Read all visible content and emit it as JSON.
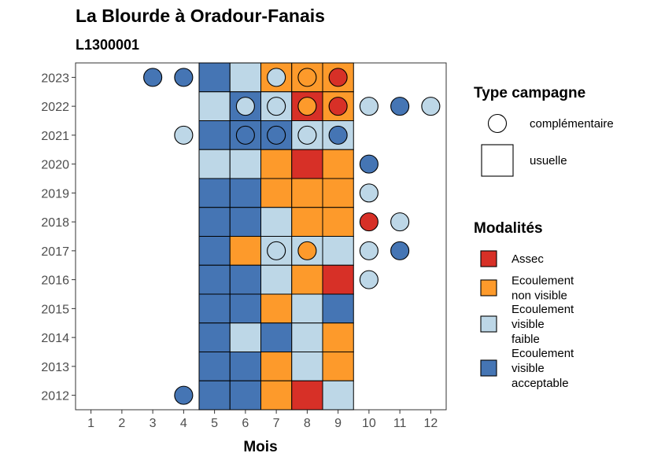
{
  "chart_data": {
    "type": "heatmap",
    "title": "La Blourde à Oradour-Fanais",
    "subtitle": "L1300001",
    "xlabel": "Mois",
    "ylabel": "",
    "x_ticks": [
      "1",
      "2",
      "3",
      "4",
      "5",
      "6",
      "7",
      "8",
      "9",
      "10",
      "11",
      "12"
    ],
    "y_ticks": [
      "2012",
      "2013",
      "2014",
      "2015",
      "2016",
      "2017",
      "2018",
      "2019",
      "2020",
      "2021",
      "2022",
      "2023"
    ],
    "xlim": [
      0.5,
      12.5
    ],
    "ylim": [
      2011.5,
      2023.5
    ],
    "grid": false,
    "colors": {
      "Assec": "#d73027",
      "Ecoulement non visible": "#fd9a2b",
      "Ecoulement visible faible": "#bdd7e7",
      "Ecoulement visible acceptable": "#4575b4"
    },
    "legend_campagne": {
      "title": "Type campagne",
      "entries": [
        {
          "key": "complementaire",
          "label": "complémentaire",
          "shape": "circle"
        },
        {
          "key": "usuelle",
          "label": "usuelle",
          "shape": "square"
        }
      ]
    },
    "legend_modalites": {
      "title": "Modalités",
      "entries": [
        {
          "key": "Assec",
          "lines": [
            "Assec"
          ]
        },
        {
          "key": "Ecoulement non visible",
          "lines": [
            "Ecoulement",
            "non visible"
          ]
        },
        {
          "key": "Ecoulement visible faible",
          "lines": [
            "Ecoulement",
            "visible",
            "faible"
          ]
        },
        {
          "key": "Ecoulement visible acceptable",
          "lines": [
            "Ecoulement",
            "visible",
            "acceptable"
          ]
        }
      ]
    },
    "usuelle": [
      {
        "year": 2023,
        "months": {
          "5": "Ecoulement visible acceptable",
          "6": "Ecoulement visible faible",
          "7": "Ecoulement non visible",
          "8": "Ecoulement non visible",
          "9": "Ecoulement non visible"
        }
      },
      {
        "year": 2022,
        "months": {
          "5": "Ecoulement visible faible",
          "6": "Ecoulement visible acceptable",
          "7": "Ecoulement visible faible",
          "8": "Assec",
          "9": "Ecoulement non visible"
        }
      },
      {
        "year": 2021,
        "months": {
          "5": "Ecoulement visible acceptable",
          "6": "Ecoulement visible acceptable",
          "7": "Ecoulement visible acceptable",
          "8": "Ecoulement visible faible",
          "9": "Ecoulement visible faible"
        }
      },
      {
        "year": 2020,
        "months": {
          "5": "Ecoulement visible faible",
          "6": "Ecoulement visible faible",
          "7": "Ecoulement non visible",
          "8": "Assec",
          "9": "Ecoulement non visible"
        }
      },
      {
        "year": 2019,
        "months": {
          "5": "Ecoulement visible acceptable",
          "6": "Ecoulement visible acceptable",
          "7": "Ecoulement non visible",
          "8": "Ecoulement non visible",
          "9": "Ecoulement non visible"
        }
      },
      {
        "year": 2018,
        "months": {
          "5": "Ecoulement visible acceptable",
          "6": "Ecoulement visible acceptable",
          "7": "Ecoulement visible faible",
          "8": "Ecoulement non visible",
          "9": "Ecoulement non visible"
        }
      },
      {
        "year": 2017,
        "months": {
          "5": "Ecoulement visible acceptable",
          "6": "Ecoulement non visible",
          "7": "Ecoulement visible faible",
          "8": "Ecoulement visible faible",
          "9": "Ecoulement visible faible"
        }
      },
      {
        "year": 2016,
        "months": {
          "5": "Ecoulement visible acceptable",
          "6": "Ecoulement visible acceptable",
          "7": "Ecoulement visible faible",
          "8": "Ecoulement non visible",
          "9": "Assec"
        }
      },
      {
        "year": 2015,
        "months": {
          "5": "Ecoulement visible acceptable",
          "6": "Ecoulement visible acceptable",
          "7": "Ecoulement non visible",
          "8": "Ecoulement visible faible",
          "9": "Ecoulement visible acceptable"
        }
      },
      {
        "year": 2014,
        "months": {
          "5": "Ecoulement visible acceptable",
          "6": "Ecoulement visible faible",
          "7": "Ecoulement visible acceptable",
          "8": "Ecoulement visible faible",
          "9": "Ecoulement non visible"
        }
      },
      {
        "year": 2013,
        "months": {
          "5": "Ecoulement visible acceptable",
          "6": "Ecoulement visible acceptable",
          "7": "Ecoulement non visible",
          "8": "Ecoulement visible faible",
          "9": "Ecoulement non visible"
        }
      },
      {
        "year": 2012,
        "months": {
          "5": "Ecoulement visible acceptable",
          "6": "Ecoulement visible acceptable",
          "7": "Ecoulement non visible",
          "8": "Assec",
          "9": "Ecoulement visible faible"
        }
      }
    ],
    "complementaire": [
      {
        "year": 2023,
        "month": 3,
        "value": "Ecoulement visible acceptable"
      },
      {
        "year": 2023,
        "month": 4,
        "value": "Ecoulement visible acceptable"
      },
      {
        "year": 2023,
        "month": 7,
        "value": "Ecoulement visible faible"
      },
      {
        "year": 2023,
        "month": 8,
        "value": "Ecoulement non visible"
      },
      {
        "year": 2023,
        "month": 9,
        "value": "Assec"
      },
      {
        "year": 2022,
        "month": 6,
        "value": "Ecoulement visible faible"
      },
      {
        "year": 2022,
        "month": 7,
        "value": "Ecoulement visible faible"
      },
      {
        "year": 2022,
        "month": 8,
        "value": "Ecoulement non visible"
      },
      {
        "year": 2022,
        "month": 9,
        "value": "Assec"
      },
      {
        "year": 2022,
        "month": 10,
        "value": "Ecoulement visible faible"
      },
      {
        "year": 2022,
        "month": 11,
        "value": "Ecoulement visible acceptable"
      },
      {
        "year": 2022,
        "month": 12,
        "value": "Ecoulement visible faible"
      },
      {
        "year": 2021,
        "month": 4,
        "value": "Ecoulement visible faible"
      },
      {
        "year": 2021,
        "month": 6,
        "value": "Ecoulement visible acceptable"
      },
      {
        "year": 2021,
        "month": 7,
        "value": "Ecoulement visible acceptable"
      },
      {
        "year": 2021,
        "month": 8,
        "value": "Ecoulement visible faible"
      },
      {
        "year": 2021,
        "month": 9,
        "value": "Ecoulement visible acceptable"
      },
      {
        "year": 2020,
        "month": 10,
        "value": "Ecoulement visible acceptable"
      },
      {
        "year": 2019,
        "month": 10,
        "value": "Ecoulement visible faible"
      },
      {
        "year": 2018,
        "month": 10,
        "value": "Assec"
      },
      {
        "year": 2018,
        "month": 11,
        "value": "Ecoulement visible faible"
      },
      {
        "year": 2017,
        "month": 7,
        "value": "Ecoulement visible faible"
      },
      {
        "year": 2017,
        "month": 8,
        "value": "Ecoulement non visible"
      },
      {
        "year": 2017,
        "month": 10,
        "value": "Ecoulement visible faible"
      },
      {
        "year": 2017,
        "month": 11,
        "value": "Ecoulement visible acceptable"
      },
      {
        "year": 2016,
        "month": 10,
        "value": "Ecoulement visible faible"
      },
      {
        "year": 2012,
        "month": 4,
        "value": "Ecoulement visible acceptable"
      }
    ]
  }
}
